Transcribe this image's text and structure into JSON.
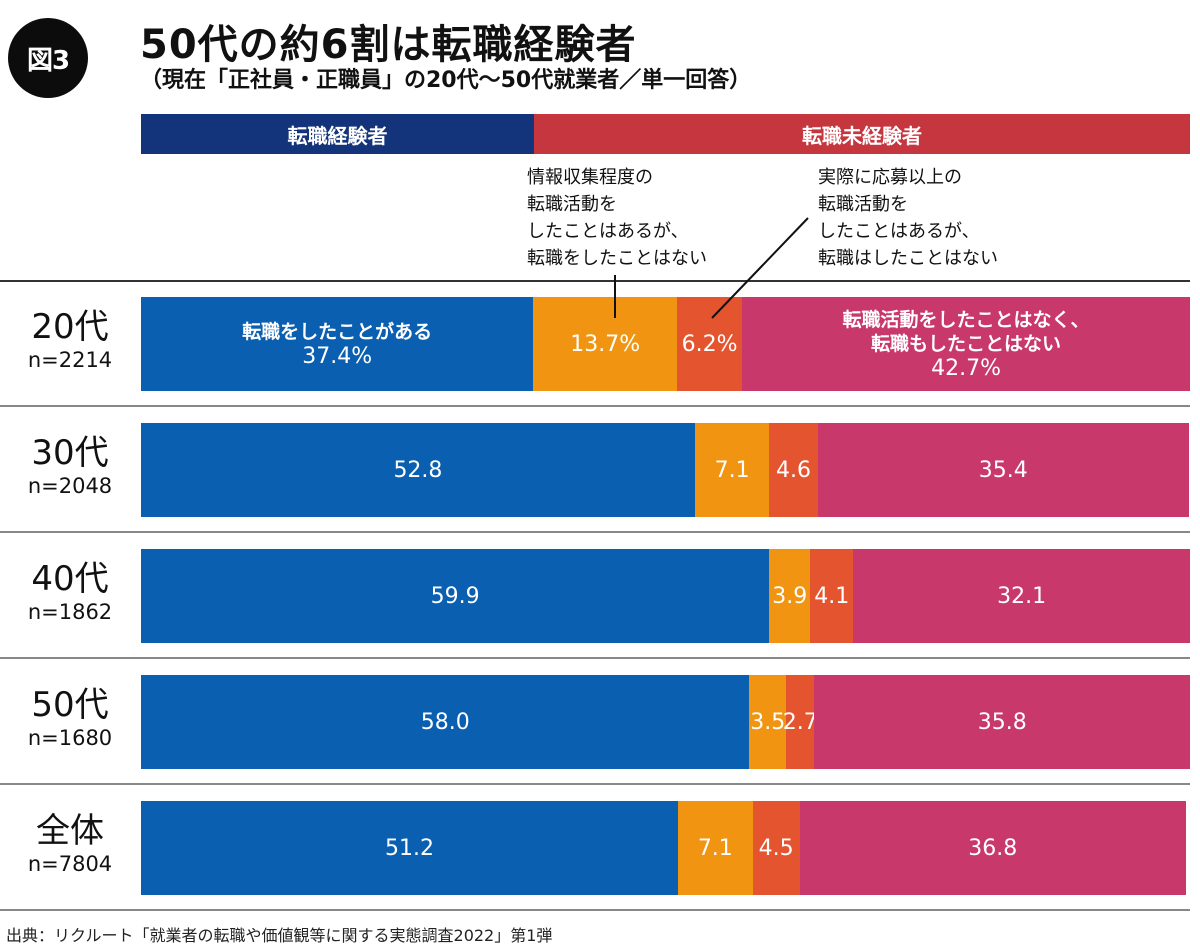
{
  "badge": "図3",
  "title": "50代の約6割は転職経験者",
  "subtitle": "（現在「正社員・正職員」の20代〜50代就業者／単一回答）",
  "group_headers": [
    {
      "label": "転職経験者",
      "color": "#13337a"
    },
    {
      "label": "転職未経験者",
      "color": "#c6363f"
    }
  ],
  "annotations": {
    "info_gathering": "情報収集程度の\n転職活動を\nしたことはあるが、\n転職をしたことはない",
    "applied": "実際に応募以上の\n転職活動を\nしたことはあるが、\n転職はしたことはない"
  },
  "footer": "出典：リクルート「就業者の転職や価値観等に関する実態調査2022」第1弾",
  "chart_data": {
    "type": "bar",
    "orientation": "horizontal",
    "stacked": true,
    "percent": true,
    "title": "50代の約6割は転職経験者",
    "subtitle": "（現在「正社員・正職員」の20代〜50代就業者／単一回答）",
    "categories": [
      "20代",
      "30代",
      "40代",
      "50代",
      "全体"
    ],
    "sample_sizes": [
      "n=2214",
      "n=2048",
      "n=1862",
      "n=1680",
      "n=7804"
    ],
    "xlim": [
      0,
      100
    ],
    "grid": false,
    "series": [
      {
        "name": "転職をしたことがある",
        "color": "#0a5fb0",
        "values": [
          37.4,
          52.8,
          59.9,
          58.0,
          51.2
        ],
        "labels": [
          "37.4%",
          "52.8",
          "59.9",
          "58.0",
          "51.2"
        ],
        "first_label": "転職をしたことがある"
      },
      {
        "name": "情報収集程度の転職活動をしたことはあるが、転職をしたことはない",
        "color": "#f19411",
        "values": [
          13.7,
          7.1,
          3.9,
          3.5,
          7.1
        ],
        "labels": [
          "13.7%",
          "7.1",
          "3.9",
          "3.5",
          "7.1"
        ],
        "first_label": ""
      },
      {
        "name": "実際に応募以上の転職活動をしたことはあるが、転職はしたことはない",
        "color": "#e4552f",
        "values": [
          6.2,
          4.6,
          4.1,
          2.7,
          4.5
        ],
        "labels": [
          "6.2%",
          "4.6",
          "4.1",
          "2.7",
          "4.5"
        ],
        "first_label": ""
      },
      {
        "name": "転職活動をしたことはなく、転職もしたことはない",
        "color": "#c8386b",
        "values": [
          42.7,
          35.4,
          32.1,
          35.8,
          36.8
        ],
        "labels": [
          "42.7%",
          "35.4",
          "32.1",
          "35.8",
          "36.8"
        ],
        "first_label": "転職活動をしたことはなく、\n転職もしたことはない"
      }
    ]
  }
}
